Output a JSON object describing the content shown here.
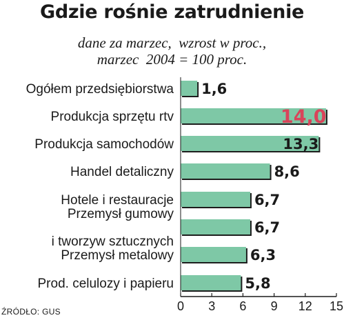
{
  "header": {
    "title": "Gdzie rośnie zatrudnienie",
    "subtitle_line1": "dane za marzec,  wzrost w proc.,",
    "subtitle_line2": "marzec  2004 = 100 proc."
  },
  "source": "ŹRÓDŁO: GUS",
  "colors": {
    "bar": "#7ec8a6",
    "bar_edge": "#1d1d1d",
    "highlight_text": "#d9445a",
    "axis": "#1a1a1a"
  },
  "chart_data": {
    "type": "bar",
    "orientation": "horizontal",
    "title": "Gdzie rośnie zatrudnienie",
    "categories": [
      "Ogółem przedsiębiorstwa",
      "Produkcja sprzętu rtv",
      "Produkcja samochodów",
      "Handel detaliczny",
      "Hotele i restauracje",
      "Przemysł gumowy\ni tworzyw sztucznych",
      "Przemysł metalowy",
      "Prod. celulozy i papieru"
    ],
    "values": [
      1.6,
      14.0,
      13.3,
      8.6,
      6.7,
      6.7,
      6.3,
      5.8
    ],
    "value_labels": [
      "1,6",
      "14,0",
      "13,3",
      "8,6",
      "6,7",
      "6,7",
      "6,3",
      "5,8"
    ],
    "highlight_index": 1,
    "xlim": [
      0,
      15
    ],
    "xticks": [
      0,
      3,
      6,
      9,
      12,
      15
    ],
    "grid": false,
    "legend": "none"
  }
}
